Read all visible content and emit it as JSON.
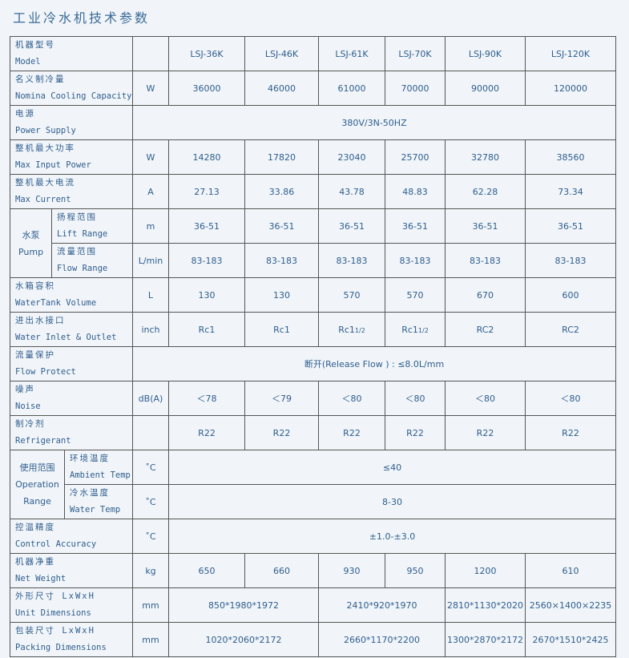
{
  "title": "工业冷水机技术参数",
  "rows": [
    {
      "cn": "机器型号",
      "en": "Model",
      "unit": "",
      "cells": [
        {
          "v": "LSJ-36K"
        },
        {
          "v": "LSJ-46K"
        },
        {
          "v": "LSJ-61K"
        },
        {
          "v": "LSJ-70K"
        },
        {
          "v": "LSJ-90K"
        },
        {
          "v": "LSJ-120K"
        }
      ]
    },
    {
      "cn": "名义制冷量",
      "en": "Nomina Cooling Capacity",
      "unit": "W",
      "cells": [
        {
          "v": "36000"
        },
        {
          "v": "46000"
        },
        {
          "v": "61000"
        },
        {
          "v": "70000"
        },
        {
          "v": "90000"
        },
        {
          "v": "120000"
        }
      ]
    },
    {
      "cn": "电源",
      "en": "Power Supply",
      "unit": "",
      "cells": [
        {
          "v": "380V/3N-50HZ",
          "span": 7
        }
      ],
      "nounit": true
    },
    {
      "cn": "整机最大功率",
      "en": "Max Input Power",
      "unit": "W",
      "cells": [
        {
          "v": "14280"
        },
        {
          "v": "17820"
        },
        {
          "v": "23040"
        },
        {
          "v": "25700"
        },
        {
          "v": "32780"
        },
        {
          "v": "38560"
        }
      ]
    },
    {
      "cn": "整机最大电流",
      "en": "Max Current",
      "unit": "A",
      "cells": [
        {
          "v": "27.13"
        },
        {
          "v": "33.86"
        },
        {
          "v": "43.78"
        },
        {
          "v": "48.83"
        },
        {
          "v": "62.28"
        },
        {
          "v": "73.34"
        }
      ]
    },
    {
      "group": {
        "cn": "水泵",
        "en": "Pump",
        "kind": "pump"
      },
      "cn": "扬程范围",
      "en": "Lift Range",
      "unit": "m",
      "cells": [
        {
          "v": "36-51"
        },
        {
          "v": "36-51"
        },
        {
          "v": "36-51"
        },
        {
          "v": "36-51"
        },
        {
          "v": "36-51"
        },
        {
          "v": "36-51"
        }
      ]
    },
    {
      "ingroup": "pump",
      "cn": "流量范围",
      "en": "Flow Range",
      "unit": "L/min",
      "cells": [
        {
          "v": "83-183"
        },
        {
          "v": "83-183"
        },
        {
          "v": "83-183"
        },
        {
          "v": "83-183"
        },
        {
          "v": "83-183"
        },
        {
          "v": "83-183"
        }
      ]
    },
    {
      "cn": "水箱容积",
      "en": "WaterTank Volume",
      "unit": "L",
      "cells": [
        {
          "v": "130"
        },
        {
          "v": "130"
        },
        {
          "v": "570"
        },
        {
          "v": "570"
        },
        {
          "v": "670"
        },
        {
          "v": "600"
        }
      ]
    },
    {
      "cn": "进出水接口",
      "en": "Water Inlet & Outlet",
      "unit": "inch",
      "cells": [
        {
          "v": "Rc1"
        },
        {
          "v": "Rc1"
        },
        {
          "v": "Rc1",
          "sub": "1/2"
        },
        {
          "v": "Rc1",
          "sub": "1/2"
        },
        {
          "v": "RC2"
        },
        {
          "v": "RC2"
        }
      ]
    },
    {
      "cn": "流量保护",
      "en": "Flow Protect",
      "unit": "",
      "cells": [
        {
          "v": "断开(Release Flow ) : ≤8.0L/mm",
          "span": 7
        }
      ],
      "nounit": true
    },
    {
      "cn": "噪声",
      "en": "Noise",
      "unit": "dB(A)",
      "cells": [
        {
          "v": "＜78"
        },
        {
          "v": "＜79"
        },
        {
          "v": "＜80"
        },
        {
          "v": "＜80"
        },
        {
          "v": "＜80"
        },
        {
          "v": "＜80"
        }
      ]
    },
    {
      "cn": "制冷剂",
      "en": "Refrigerant",
      "unit": "",
      "cells": [
        {
          "v": "R22"
        },
        {
          "v": "R22"
        },
        {
          "v": "R22"
        },
        {
          "v": "R22"
        },
        {
          "v": "R22"
        },
        {
          "v": "R22"
        }
      ]
    },
    {
      "group": {
        "cn": "使用范围",
        "en": "Operation Range",
        "kind": "op"
      },
      "cn": "环境温度",
      "en": "Ambient Temp",
      "unit": "˚C",
      "cells": [
        {
          "v": "≤40",
          "span": 6
        }
      ]
    },
    {
      "ingroup": "op",
      "cn": "冷水温度",
      "en": "Water Temp",
      "unit": "˚C",
      "cells": [
        {
          "v": "8-30",
          "span": 6
        }
      ]
    },
    {
      "cn": "控温精度",
      "en": "Control Accuracy",
      "unit": "˚C",
      "cells": [
        {
          "v": "±1.0-±3.0",
          "span": 6
        }
      ]
    },
    {
      "cn": "机器净重",
      "en": "Net Weight",
      "unit": "kg",
      "cells": [
        {
          "v": "650"
        },
        {
          "v": "660"
        },
        {
          "v": "930"
        },
        {
          "v": "950"
        },
        {
          "v": "1200"
        },
        {
          "v": "610"
        }
      ]
    },
    {
      "cn": "外形尺寸 LxWxH",
      "en": "Unit Dimensions",
      "unit": "mm",
      "cells": [
        {
          "v": "850*1980*1972",
          "span": 2
        },
        {
          "v": "2410*920*1970",
          "span": 2
        },
        {
          "v": "2810*1130*2020"
        },
        {
          "v": "2560×1400×2235"
        }
      ]
    },
    {
      "cn": "包装尺寸 LxWxH",
      "en": "Packing Dimensions",
      "unit": "mm",
      "cells": [
        {
          "v": "1020*2060*2172",
          "span": 2
        },
        {
          "v": "2660*1170*2200",
          "span": 2
        },
        {
          "v": "1300*2870*2172"
        },
        {
          "v": "2670*1510*2425"
        }
      ]
    }
  ]
}
